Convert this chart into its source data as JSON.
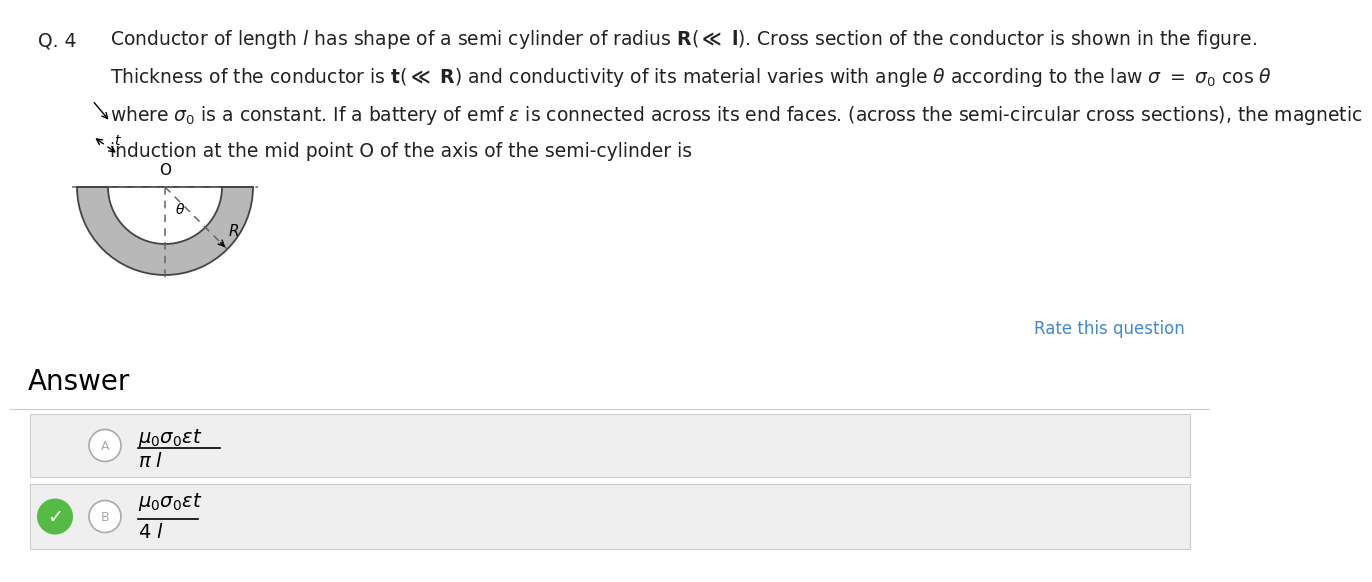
{
  "bg_color": "#ffffff",
  "question_num": "Q. 4",
  "rate_text": "Rate this question",
  "answer_label": "Answer",
  "option_A_numerator": "$\\mu_0\\sigma_0\\varepsilon t$",
  "option_A_denominator": "$\\pi$ $l$",
  "option_B_numerator": "$\\mu_0\\sigma_0\\varepsilon t$",
  "option_B_denominator": "$4$ $l$",
  "panel_color": "#efefef",
  "correct_circle_color": "#55bb44",
  "circle_label_color": "#aaaaaa",
  "rate_color": "#4488cc",
  "text_color": "#222222",
  "line1": "Conductor of length $\\mathit{l}$ has shape of a semi cylinder of radius $\\mathbf{R}$($\\mathbf{\\ll}$ $\\mathbf{l}$). Cross section of the conductor is shown in the figure.",
  "line2": "Thickness of the conductor is $\\mathbf{t}$($\\mathbf{\\ll}$ $\\mathbf{R}$) and conductivity of its material varies with angle $\\theta$ according to the law $\\sigma$ $=$ $\\sigma_0$ cos $\\theta$",
  "line3": "where $\\sigma_0$ is a constant. If a battery of emf $\\varepsilon$ is connected across its end faces. (across the semi-circular cross sections), the magnetic",
  "line4": "induction at the mid point O of the axis of the semi-cylinder is",
  "diag_gray": "#b8b8b8",
  "diag_edge": "#444444",
  "diag_dash": "#666666"
}
